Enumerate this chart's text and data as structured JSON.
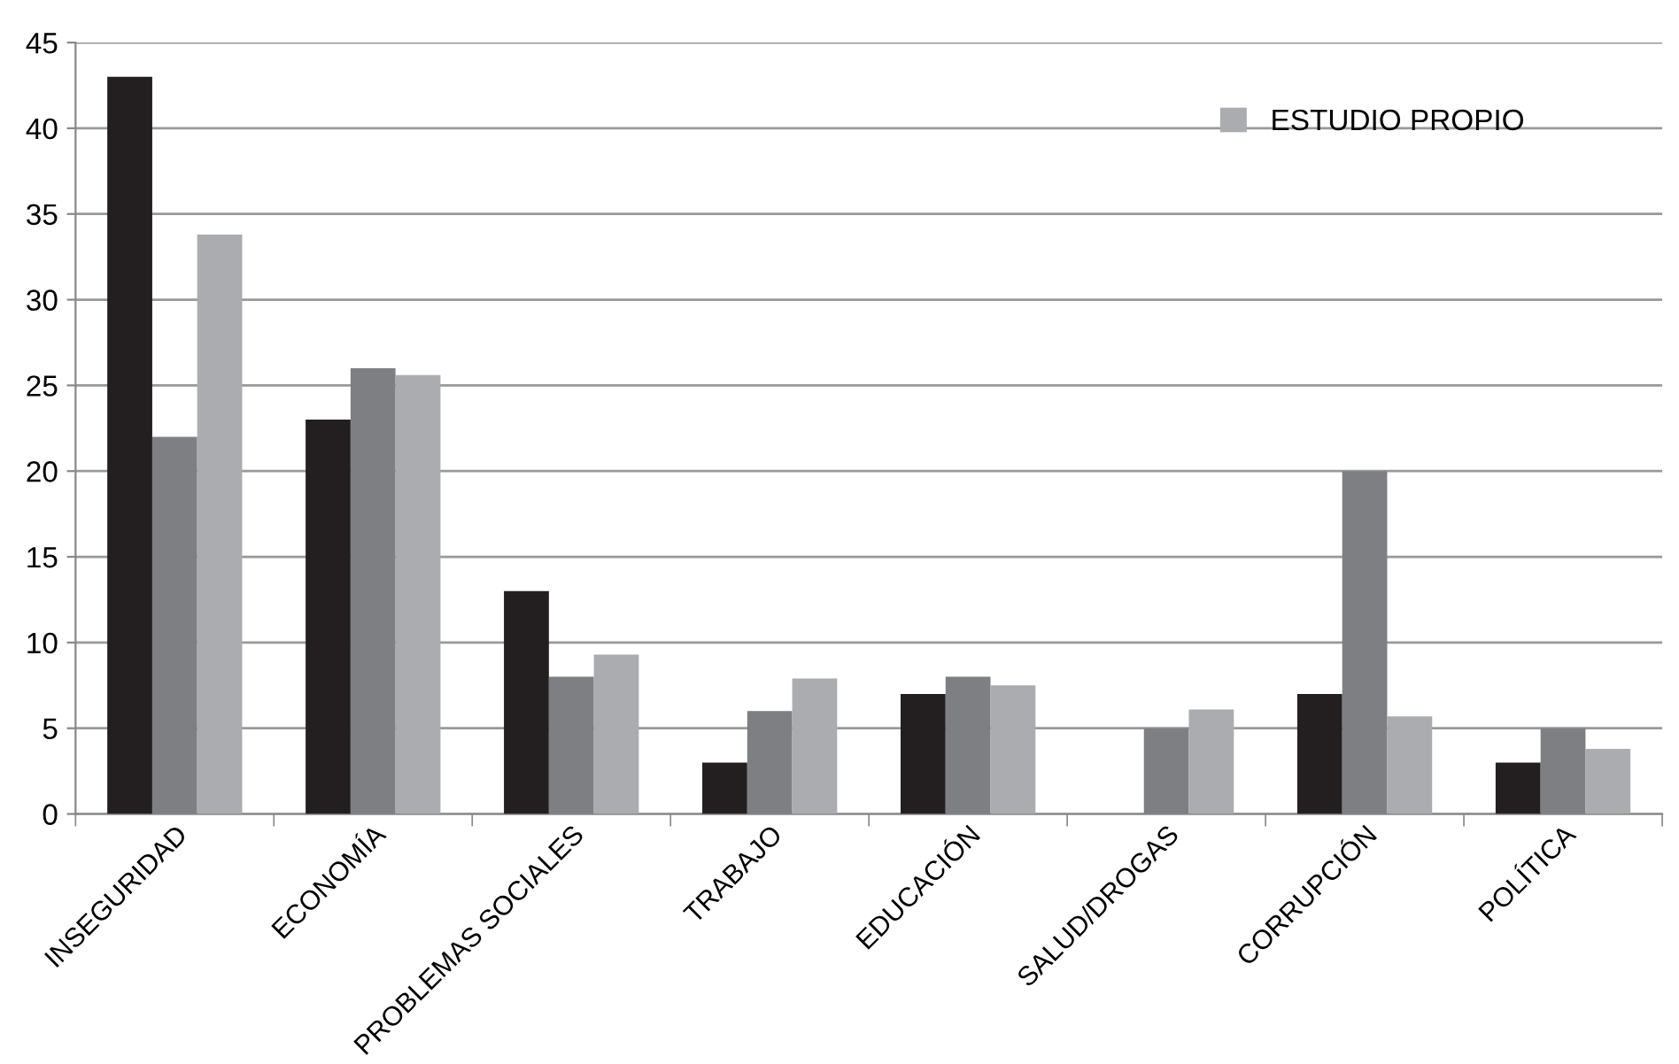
{
  "chart_data": {
    "type": "bar",
    "categories": [
      "INSEGURIDAD",
      "ECONOMÍA",
      "PROBLEMAS SOCIALES",
      "TRABAJO",
      "EDUCACIÓN",
      "SALUD/DROGAS",
      "CORRUPCIÓN",
      "POLÍTICA"
    ],
    "series": [
      {
        "color": "#231f20",
        "values": [
          43,
          23,
          13,
          3,
          7,
          0,
          7,
          3
        ]
      },
      {
        "color": "#7e7f83",
        "values": [
          22,
          26,
          8,
          6,
          8,
          5,
          20,
          5
        ]
      },
      {
        "name": "ESTUDIO PROPIO",
        "color": "#abacb0",
        "values": [
          33.8,
          25.6,
          9.3,
          7.9,
          7.5,
          6.1,
          5.7,
          3.8
        ]
      }
    ],
    "ylim": [
      0,
      45
    ],
    "yticks": [
      0,
      5,
      10,
      15,
      20,
      25,
      30,
      35,
      40,
      45
    ],
    "grid": "y",
    "legend": "top right"
  }
}
